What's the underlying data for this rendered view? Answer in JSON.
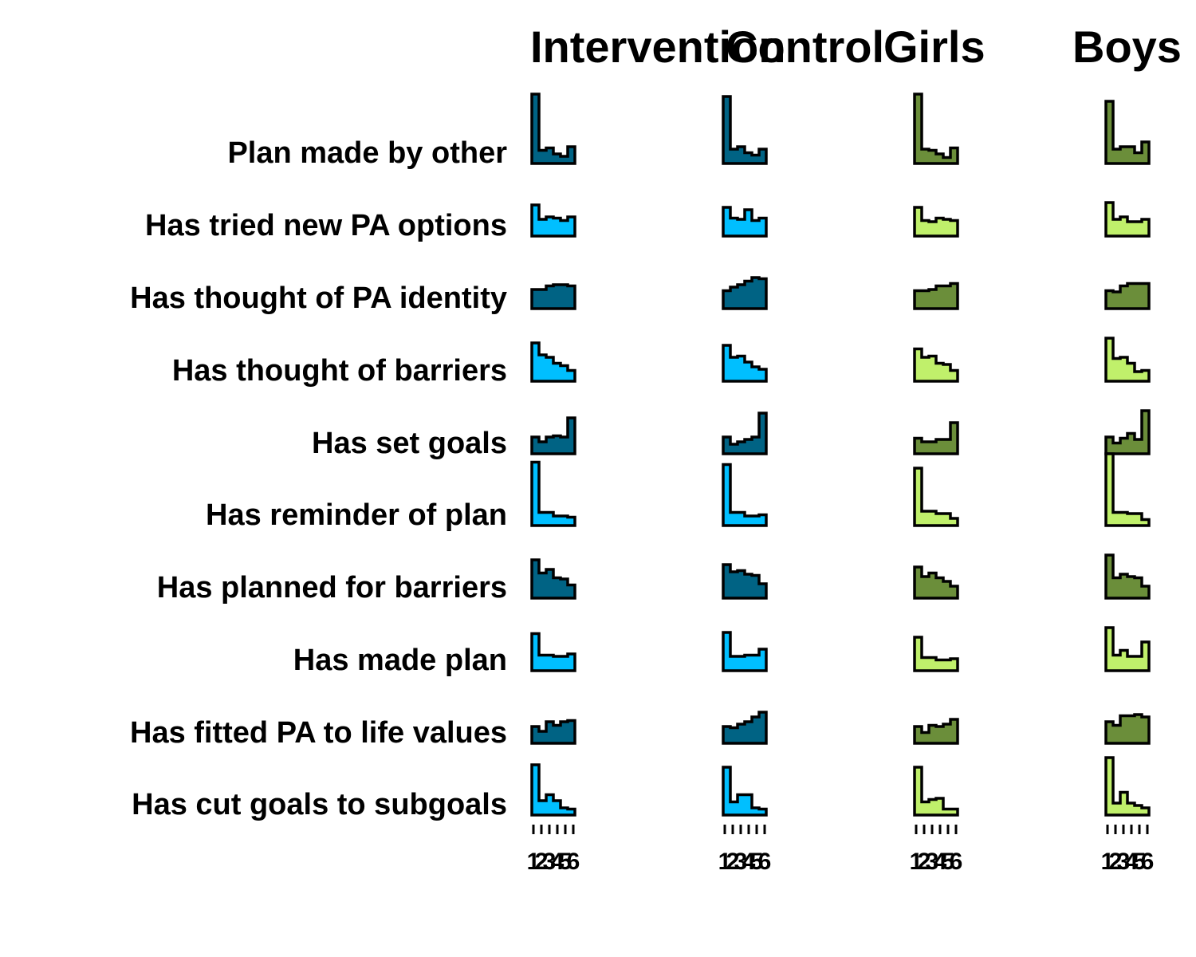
{
  "chart_data": {
    "type": "histogram-grid",
    "columns": [
      "Intervention",
      "Control",
      "Girls",
      "Boys"
    ],
    "rows": [
      "Plan made by other",
      "Has tried new PA options",
      "Has thought of PA identity",
      "Has thought of barriers",
      "Has set goals",
      "Has reminder of plan",
      "Has planned for barriers",
      "Has made plan",
      "Has fitted PA to life values",
      "Has cut goals to subgoals"
    ],
    "x_ticks": [
      "1",
      "2",
      "3",
      "4",
      "5",
      "6"
    ],
    "colors": {
      "dark_blue": "#006384",
      "light_blue": "#00BFFF",
      "dark_green": "#6B8E3A",
      "light_green": "#C0F06B"
    },
    "color_scheme": [
      [
        "dark_blue",
        "light_blue"
      ],
      [
        "dark_blue",
        "light_blue"
      ],
      [
        "dark_green",
        "light_green"
      ],
      [
        "dark_green",
        "light_green"
      ]
    ],
    "histograms": [
      [
        [
          0.58,
          0.11,
          0.13,
          0.08,
          0.06,
          0.14
        ],
        [
          0.56,
          0.12,
          0.14,
          0.09,
          0.07,
          0.12
        ],
        [
          0.58,
          0.12,
          0.11,
          0.08,
          0.05,
          0.13
        ],
        [
          0.52,
          0.12,
          0.14,
          0.14,
          0.09,
          0.18
        ]
      ],
      [
        [
          0.26,
          0.14,
          0.16,
          0.15,
          0.13,
          0.16
        ],
        [
          0.24,
          0.15,
          0.14,
          0.22,
          0.13,
          0.15
        ],
        [
          0.24,
          0.13,
          0.12,
          0.15,
          0.14,
          0.13
        ],
        [
          0.28,
          0.14,
          0.16,
          0.12,
          0.12,
          0.14
        ]
      ],
      [
        [
          0.16,
          0.16,
          0.19,
          0.2,
          0.2,
          0.19
        ],
        [
          0.15,
          0.18,
          0.2,
          0.23,
          0.26,
          0.25
        ],
        [
          0.15,
          0.15,
          0.16,
          0.19,
          0.19,
          0.21
        ],
        [
          0.15,
          0.14,
          0.19,
          0.21,
          0.21,
          0.21
        ]
      ],
      [
        [
          0.32,
          0.22,
          0.2,
          0.15,
          0.13,
          0.09
        ],
        [
          0.3,
          0.2,
          0.21,
          0.16,
          0.12,
          0.1
        ],
        [
          0.27,
          0.2,
          0.21,
          0.15,
          0.14,
          0.09
        ],
        [
          0.36,
          0.19,
          0.2,
          0.15,
          0.08,
          0.09
        ]
      ],
      [
        [
          0.14,
          0.1,
          0.14,
          0.15,
          0.14,
          0.3
        ],
        [
          0.14,
          0.08,
          0.1,
          0.12,
          0.14,
          0.34
        ],
        [
          0.13,
          0.1,
          0.1,
          0.12,
          0.12,
          0.26
        ],
        [
          0.14,
          0.09,
          0.13,
          0.17,
          0.12,
          0.36
        ]
      ],
      [
        [
          0.53,
          0.11,
          0.11,
          0.08,
          0.08,
          0.07
        ],
        [
          0.51,
          0.11,
          0.11,
          0.08,
          0.08,
          0.09
        ],
        [
          0.48,
          0.12,
          0.12,
          0.1,
          0.1,
          0.06
        ],
        [
          0.6,
          0.11,
          0.11,
          0.1,
          0.1,
          0.05
        ]
      ],
      [
        [
          0.32,
          0.21,
          0.24,
          0.17,
          0.16,
          0.11
        ],
        [
          0.28,
          0.22,
          0.23,
          0.2,
          0.19,
          0.12
        ],
        [
          0.26,
          0.18,
          0.21,
          0.17,
          0.14,
          0.1
        ],
        [
          0.36,
          0.17,
          0.2,
          0.18,
          0.17,
          0.1
        ]
      ],
      [
        [
          0.31,
          0.13,
          0.13,
          0.12,
          0.12,
          0.14
        ],
        [
          0.32,
          0.12,
          0.12,
          0.13,
          0.13,
          0.18
        ],
        [
          0.28,
          0.11,
          0.11,
          0.09,
          0.09,
          0.1
        ],
        [
          0.36,
          0.13,
          0.17,
          0.12,
          0.12,
          0.24
        ]
      ],
      [
        [
          0.14,
          0.1,
          0.18,
          0.15,
          0.18,
          0.19
        ],
        [
          0.14,
          0.13,
          0.16,
          0.18,
          0.22,
          0.26
        ],
        [
          0.14,
          0.09,
          0.15,
          0.14,
          0.16,
          0.2
        ],
        [
          0.18,
          0.15,
          0.23,
          0.23,
          0.24,
          0.22
        ]
      ],
      [
        [
          0.42,
          0.12,
          0.17,
          0.12,
          0.06,
          0.05
        ],
        [
          0.4,
          0.11,
          0.17,
          0.17,
          0.06,
          0.05
        ],
        [
          0.4,
          0.11,
          0.13,
          0.14,
          0.05,
          0.05
        ],
        [
          0.48,
          0.1,
          0.19,
          0.1,
          0.08,
          0.06
        ]
      ]
    ]
  }
}
